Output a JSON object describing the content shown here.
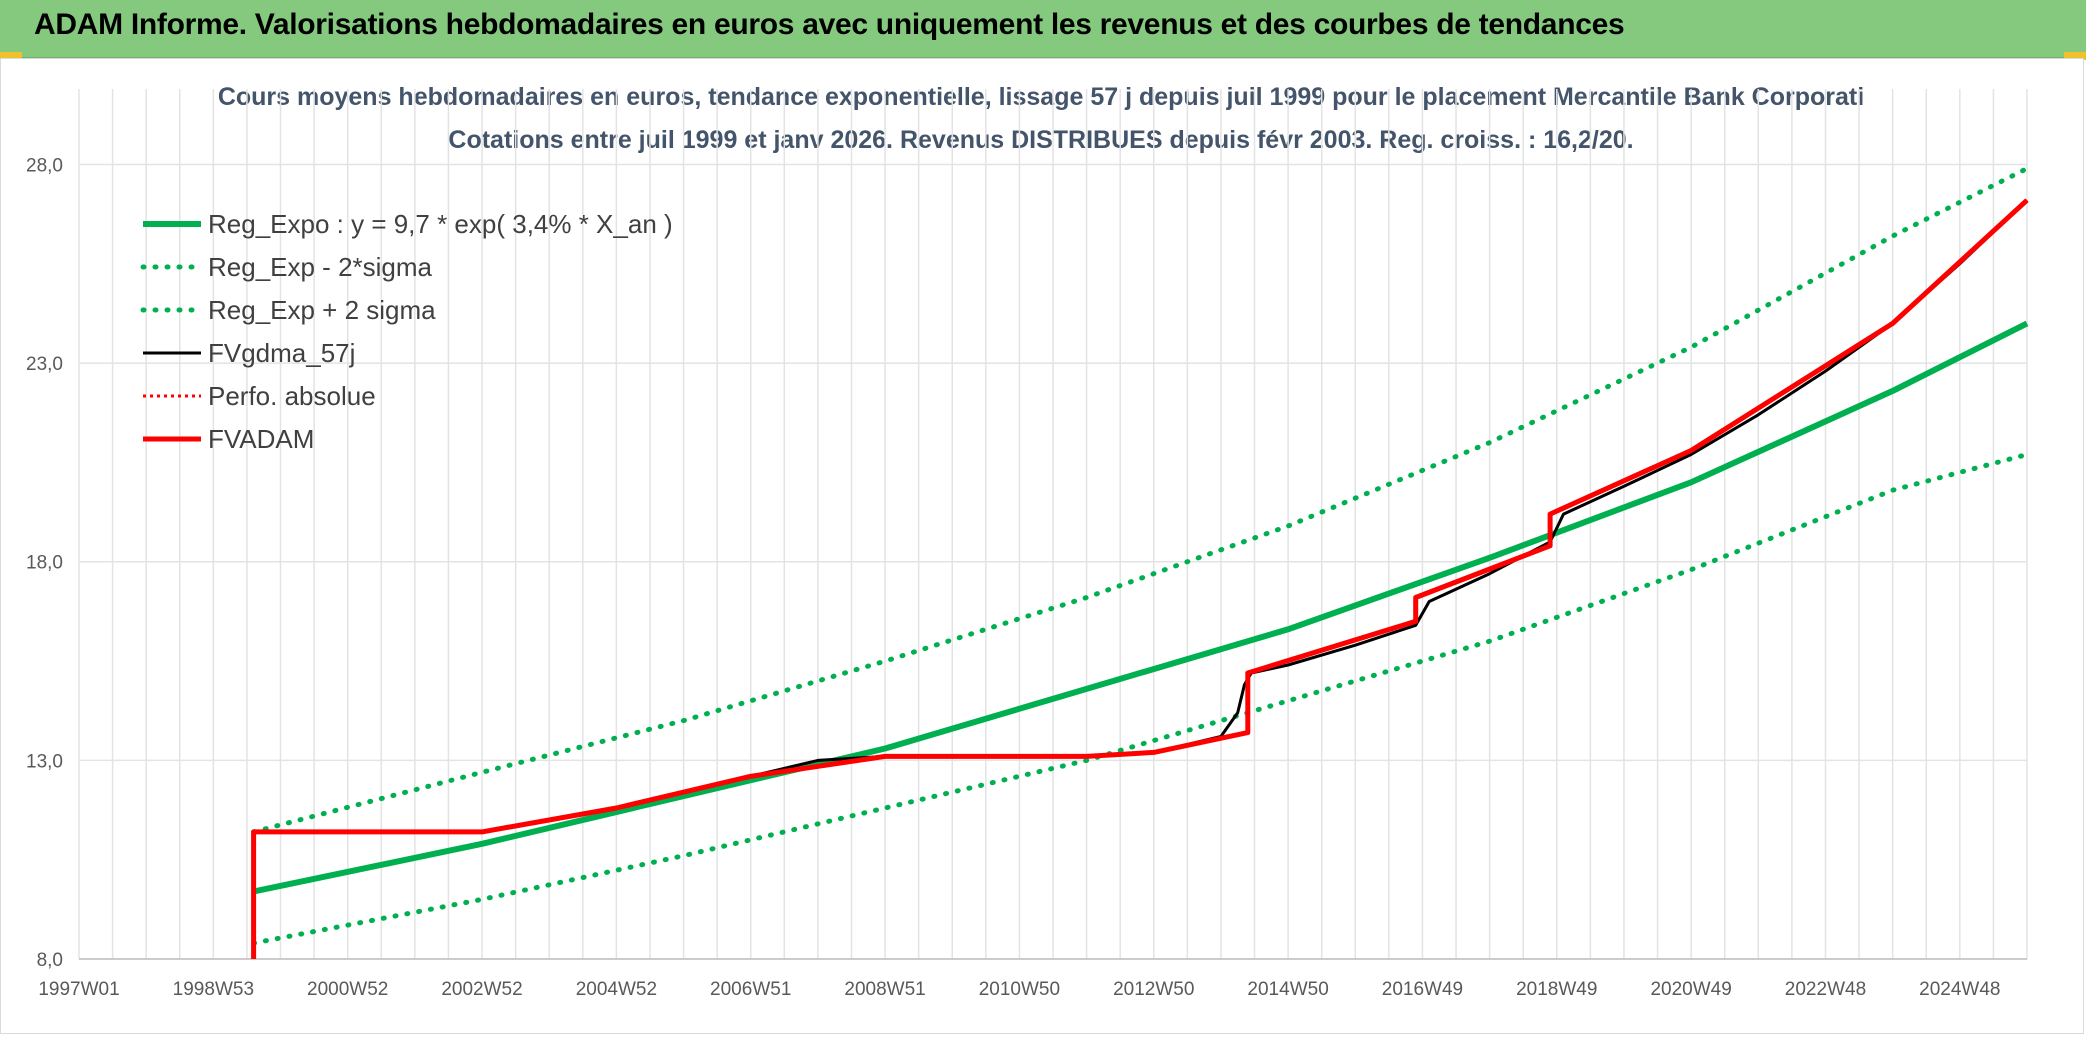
{
  "header": {
    "title": "ADAM Informe. Valorisations hebdomadaires en euros avec uniquement les revenus et des courbes de tendances"
  },
  "colors": {
    "header_bg": "#84c97e",
    "trend": "#00b050",
    "gdma": "#000000",
    "adam": "#ff0000",
    "grid": "#e3e3e3",
    "title": "#44546a"
  },
  "chart_data": {
    "type": "line",
    "title": "Cours moyens hebdomadaires en euros, tendance exponentielle, lissage 57 j depuis juil 1999 pour le placement Mercantile Bank Corporati",
    "subtitle": "Cotations entre juil 1999 et janv 2026. Revenus DISTRIBUES depuis févr 2003. Reg. croiss. : 16,2/20.",
    "xlabel": "",
    "ylabel": "",
    "ylim": [
      8.0,
      29.9
    ],
    "xlim": [
      1997.0,
      2026.0
    ],
    "y_ticks": [
      "8,0",
      "13,0",
      "18,0",
      "23,0",
      "28,0"
    ],
    "y_tick_values": [
      8,
      13,
      18,
      23,
      28
    ],
    "x_ticks": [
      "1997W01",
      "1998W53",
      "2000W52",
      "2002W52",
      "2004W52",
      "2006W51",
      "2008W51",
      "2010W50",
      "2012W50",
      "2014W50",
      "2016W49",
      "2018W49",
      "2020W49",
      "2022W48",
      "2024W48"
    ],
    "x_tick_values": [
      1997.0,
      1999.0,
      2001.0,
      2003.0,
      2005.0,
      2007.0,
      2009.0,
      2011.0,
      2013.0,
      2015.0,
      2017.0,
      2019.0,
      2021.0,
      2023.0,
      2025.0
    ],
    "grid": true,
    "legend_position": "top-left",
    "series": [
      {
        "name": "Reg_Expo : y = 9,7 * exp( 3,4% *  X_an )",
        "color": "#00b050",
        "style": "solid",
        "x": [
          1999.6,
          2003.0,
          2006.0,
          2009.0,
          2012.0,
          2015.0,
          2018.0,
          2021.0,
          2024.0,
          2026.0
        ],
        "y": [
          9.7,
          10.9,
          12.1,
          13.3,
          14.8,
          16.3,
          18.1,
          20.0,
          22.3,
          24.0
        ]
      },
      {
        "name": "Reg_Exp - 2*sigma",
        "color": "#00b050",
        "style": "dotted",
        "x": [
          1999.6,
          2003.0,
          2006.0,
          2009.0,
          2012.0,
          2015.0,
          2018.0,
          2021.0,
          2024.0,
          2026.0
        ],
        "y": [
          8.4,
          9.5,
          10.6,
          11.8,
          13.0,
          14.5,
          16.0,
          17.8,
          19.8,
          20.7
        ]
      },
      {
        "name": "Reg_Exp + 2 sigma",
        "color": "#00b050",
        "style": "dotted",
        "x": [
          1999.6,
          2003.0,
          2006.0,
          2009.0,
          2012.0,
          2015.0,
          2018.0,
          2021.0,
          2024.0,
          2026.0
        ],
        "y": [
          11.2,
          12.7,
          14.0,
          15.5,
          17.1,
          18.9,
          21.0,
          23.4,
          26.2,
          27.9
        ]
      },
      {
        "name": "FVgdma_57j",
        "color": "#000000",
        "style": "solid",
        "x": [
          1999.6,
          2003.0,
          2004.0,
          2005.0,
          2006.0,
          2007.0,
          2008.0,
          2009.0,
          2011.0,
          2012.0,
          2013.0,
          2014.0,
          2014.25,
          2014.35,
          2014.45,
          2015.0,
          2016.0,
          2016.9,
          2017.1,
          2018.0,
          2018.9,
          2019.1,
          2020.0,
          2021.0,
          2022.0,
          2023.0,
          2024.0,
          2025.0,
          2026.0
        ],
        "y": [
          11.2,
          11.2,
          11.5,
          11.8,
          12.2,
          12.6,
          13.0,
          13.1,
          13.1,
          13.1,
          13.2,
          13.6,
          14.2,
          14.9,
          15.2,
          15.4,
          15.9,
          16.4,
          17.0,
          17.7,
          18.5,
          19.2,
          19.9,
          20.7,
          21.7,
          22.8,
          24.0,
          25.5,
          27.1
        ]
      },
      {
        "name": "Perfo. absolue",
        "color": "#ff0000",
        "style": "dotted",
        "x": [
          1999.6,
          1999.6,
          2003.0,
          2005.0,
          2007.0,
          2009.0,
          2012.0,
          2013.0,
          2014.4,
          2014.4,
          2016.9,
          2016.9,
          2018.9,
          2018.9,
          2021.0,
          2024.0,
          2026.0
        ],
        "y": [
          8.0,
          11.2,
          11.2,
          11.8,
          12.6,
          13.1,
          13.1,
          13.2,
          13.7,
          15.2,
          16.5,
          17.1,
          18.4,
          19.2,
          20.8,
          24.0,
          27.1
        ]
      },
      {
        "name": "FVADAM",
        "color": "#ff0000",
        "style": "solid",
        "x": [
          1999.6,
          1999.6,
          2003.0,
          2005.0,
          2007.0,
          2009.0,
          2012.0,
          2013.0,
          2014.4,
          2014.4,
          2016.9,
          2016.9,
          2018.9,
          2018.9,
          2021.0,
          2024.0,
          2026.0
        ],
        "y": [
          8.0,
          11.2,
          11.2,
          11.8,
          12.6,
          13.1,
          13.1,
          13.2,
          13.7,
          15.2,
          16.5,
          17.1,
          18.4,
          19.2,
          20.8,
          24.0,
          27.1
        ]
      }
    ]
  }
}
